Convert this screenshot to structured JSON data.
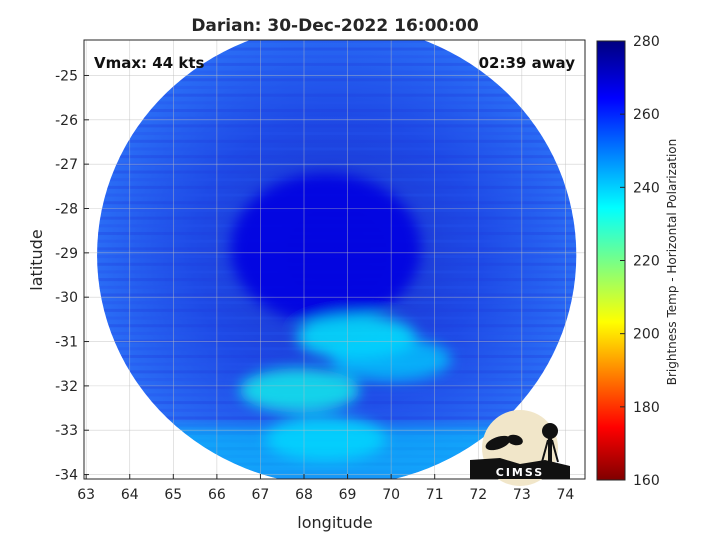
{
  "chart_data": {
    "type": "heatmap",
    "title": "Darian: 30-Dec-2022 16:00:00",
    "annotation_left": "Vmax: 44 kts",
    "annotation_right": "02:39 away",
    "xlabel": "longitude",
    "ylabel": "latitude",
    "xlim": [
      62.95,
      74.45
    ],
    "ylim": [
      -34.1,
      -24.2
    ],
    "x_ticks": [
      "63",
      "64",
      "65",
      "66",
      "67",
      "68",
      "69",
      "70",
      "71",
      "72",
      "73",
      "74"
    ],
    "y_ticks": [
      "-25",
      "-26",
      "-27",
      "-28",
      "-29",
      "-30",
      "-31",
      "-32",
      "-33",
      "-34"
    ],
    "grid": true,
    "colorbar": {
      "label": "Brightness Temp - Horizontal Polarization",
      "min": 160,
      "max": 280,
      "ticks": [
        "280",
        "260",
        "240",
        "220",
        "200",
        "180",
        "160"
      ],
      "colormap": "jet"
    },
    "swath": {
      "center_lon": 68.75,
      "center_lat": -29.05,
      "radius_lon": 5.5,
      "radius_lat": 5.2
    },
    "cold_features": [
      {
        "lon": 68.5,
        "lat": -28.9,
        "tb": 268
      },
      {
        "lon": 69.2,
        "lat": -30.9,
        "tb": 235
      },
      {
        "lon": 67.9,
        "lat": -32.1,
        "tb": 232
      },
      {
        "lon": 70.0,
        "lat": -31.4,
        "tb": 240
      },
      {
        "lon": 68.5,
        "lat": -33.2,
        "tb": 236
      }
    ],
    "logo_text": "CIMSS"
  }
}
